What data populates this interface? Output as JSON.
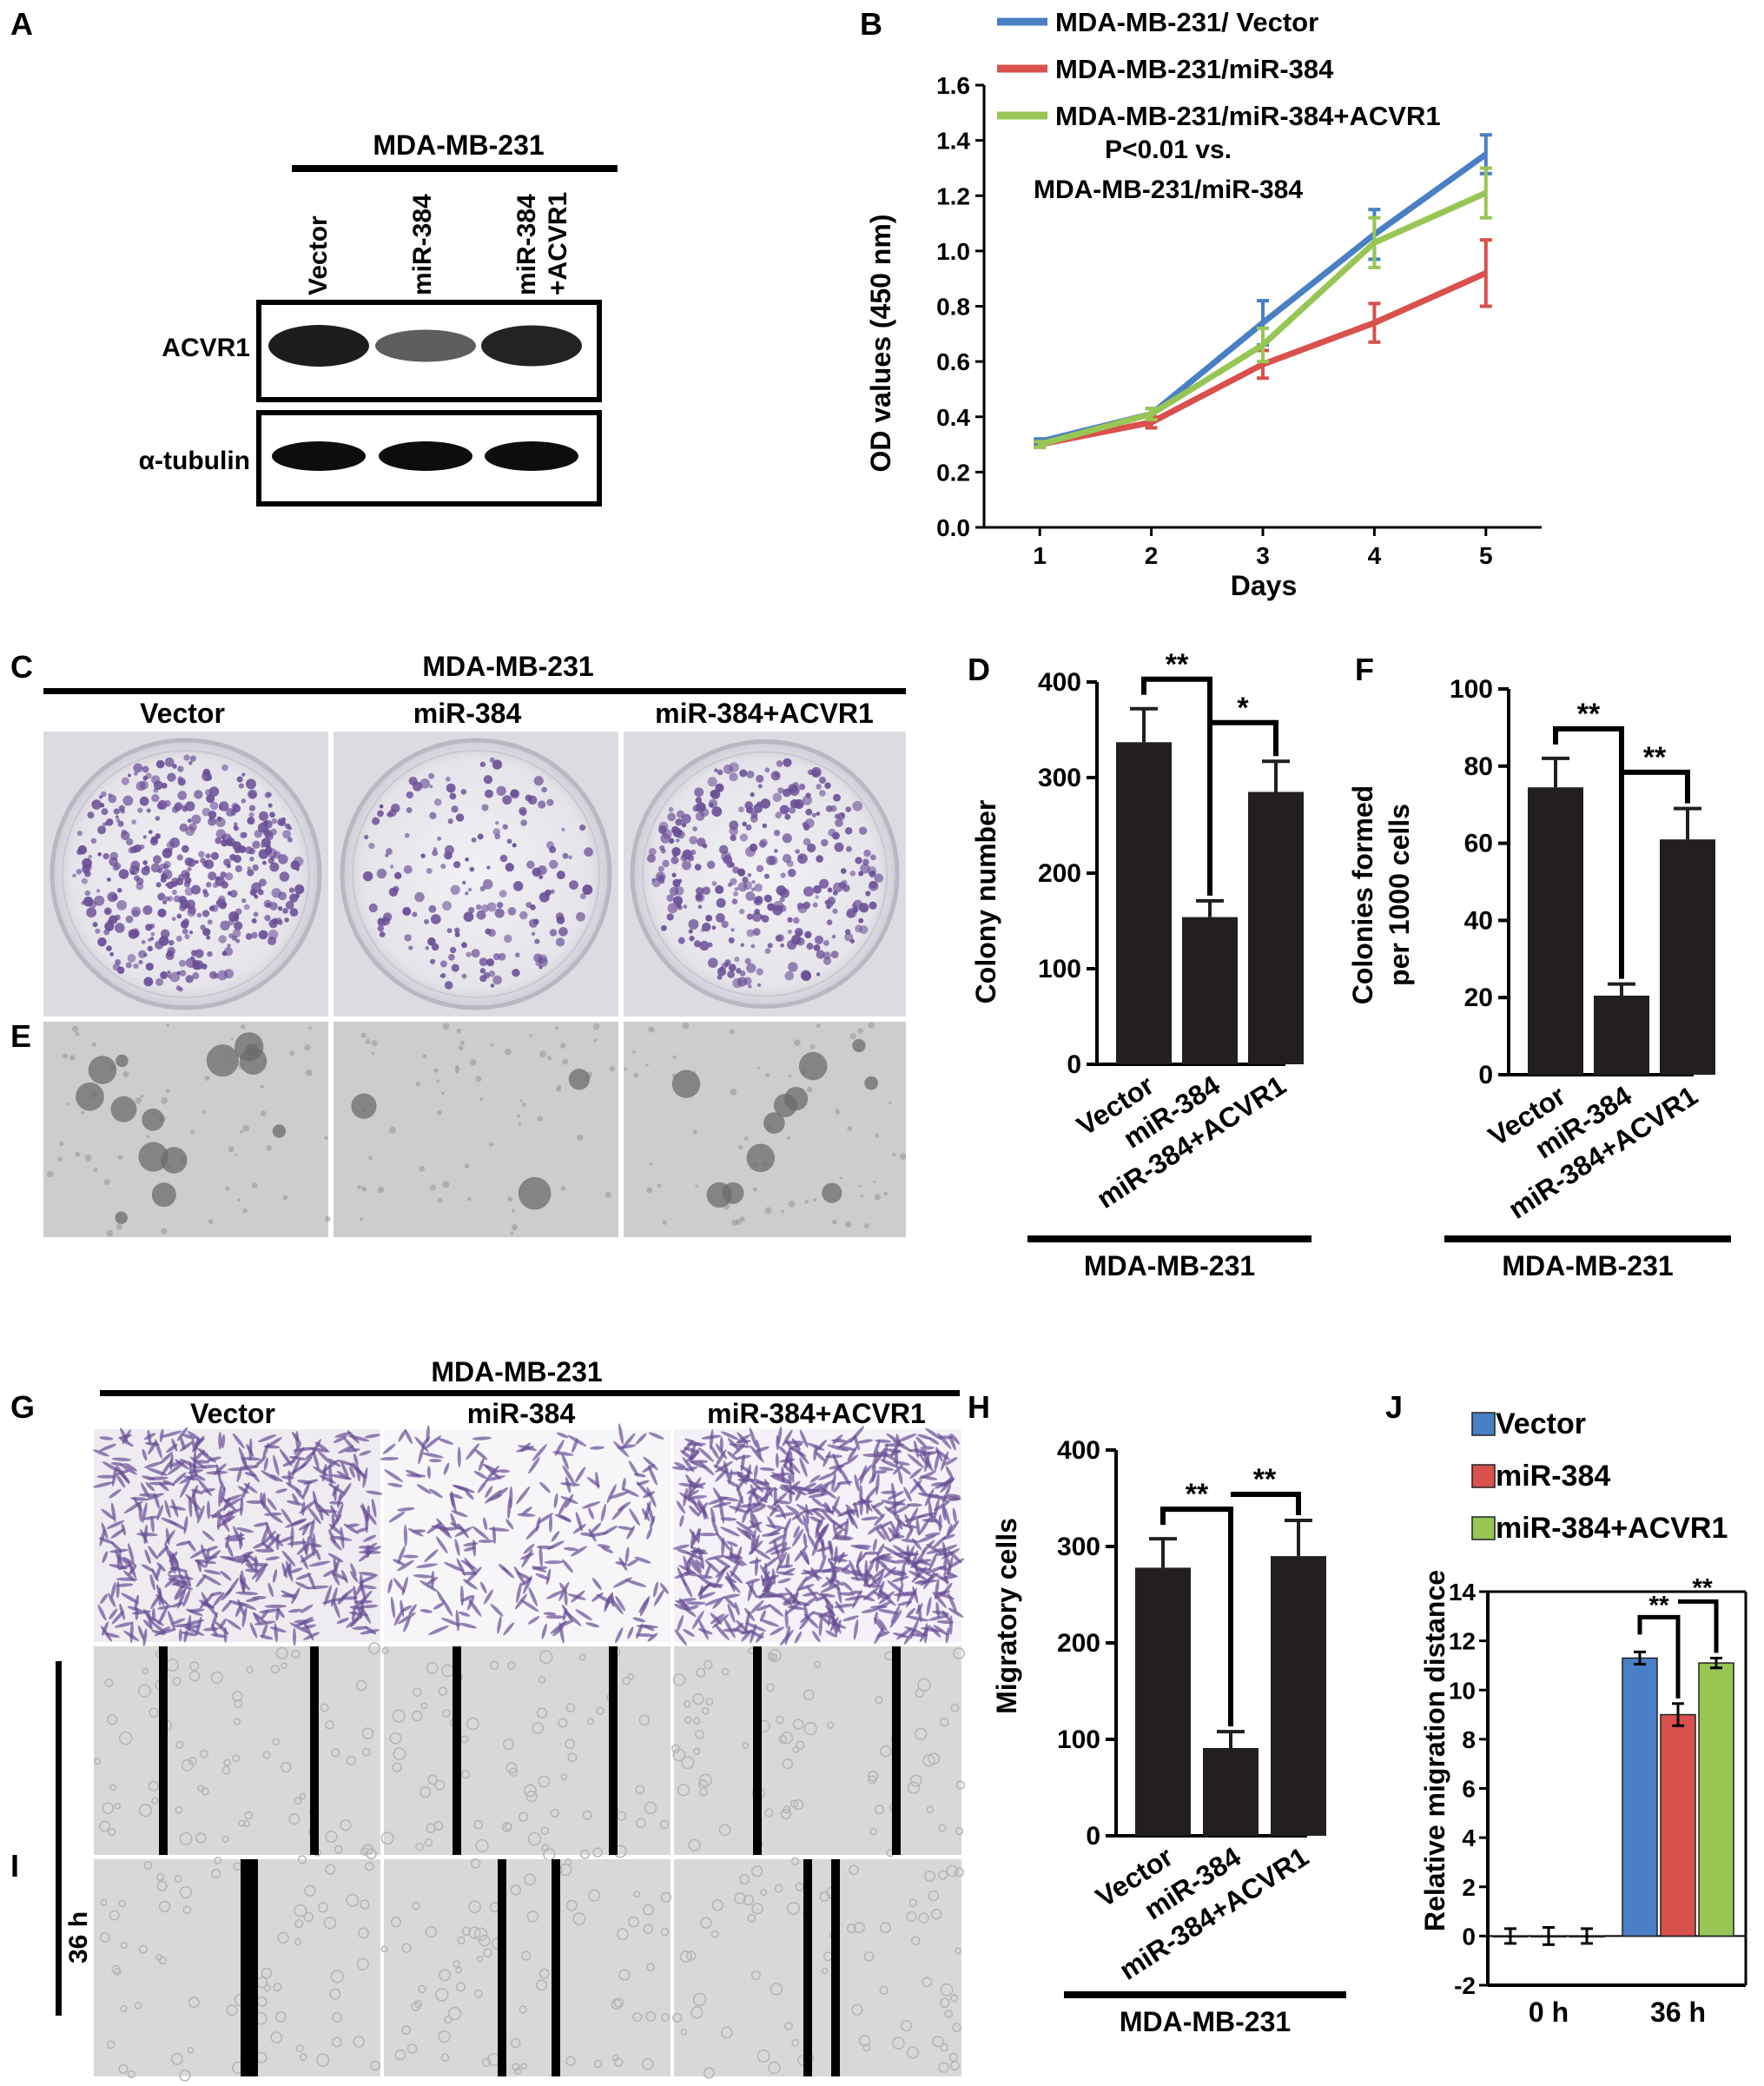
{
  "panel_letters": {
    "A": "A",
    "B": "B",
    "C": "C",
    "D": "D",
    "E": "E",
    "F": "F",
    "G": "G",
    "H": "H",
    "I": "I",
    "J": "J"
  },
  "cell_line": "MDA-MB-231",
  "blot": {
    "lanes": [
      "Vector",
      "miR-384",
      "miR-384",
      "+ACVR1"
    ],
    "rows": [
      "ACVR1",
      "α-tubulin"
    ],
    "band_intensity": {
      "ACVR1": [
        1.0,
        0.45,
        0.95
      ],
      "alpha_tubulin": [
        1.0,
        1.0,
        1.0
      ]
    }
  },
  "groups": [
    "Vector",
    "miR-384",
    "miR-384+ACVR1"
  ],
  "wound_times": [
    "0 h",
    "36 h"
  ],
  "image_colors": {
    "stain": "#6a4e96",
    "plate_bg": "#e6e5ea",
    "brightfield": "#cdcdcd"
  },
  "chart_data": [
    {
      "id": "B",
      "type": "line",
      "x": [
        1,
        2,
        3,
        4,
        5
      ],
      "series": [
        {
          "name": "MDA-MB-231/ Vector",
          "color": "#4a7fc6",
          "values": [
            0.31,
            0.41,
            0.74,
            1.06,
            1.35
          ],
          "err": [
            0.01,
            0.02,
            0.08,
            0.09,
            0.07
          ]
        },
        {
          "name": "MDA-MB-231/miR-384",
          "color": "#d9504c",
          "values": [
            0.3,
            0.38,
            0.59,
            0.74,
            0.92
          ],
          "err": [
            0.01,
            0.02,
            0.05,
            0.07,
            0.12
          ]
        },
        {
          "name": "MDA-MB-231/miR-384+ACVR1",
          "color": "#97c655",
          "values": [
            0.3,
            0.41,
            0.66,
            1.03,
            1.21
          ],
          "err": [
            0.01,
            0.02,
            0.06,
            0.09,
            0.09
          ]
        }
      ],
      "annotation": [
        "P<0.01 vs.",
        "MDA-MB-231/miR-384"
      ],
      "xlabel": "Days",
      "ylabel": "OD values (450 nm)",
      "ylim": [
        0,
        1.6
      ],
      "yticks": [
        "0.0",
        "0.2",
        "0.4",
        "0.6",
        "0.8",
        "1.0",
        "1.2",
        "1.4",
        "1.6"
      ],
      "legend": "top"
    },
    {
      "id": "D",
      "type": "bar",
      "categories": [
        "Vector",
        "miR-384",
        "miR-384+ACVR1"
      ],
      "values": [
        337,
        154,
        285
      ],
      "err": [
        35,
        17,
        32
      ],
      "ylabel": "Colony number",
      "ylim": [
        0,
        400
      ],
      "yticks": [
        "0",
        "100",
        "200",
        "300",
        "400"
      ],
      "significance": [
        "**",
        "*"
      ],
      "group_label": "MDA-MB-231"
    },
    {
      "id": "F",
      "type": "bar",
      "categories": [
        "Vector",
        "miR-384",
        "miR-384+ACVR1"
      ],
      "values": [
        74.5,
        20.5,
        61
      ],
      "err": [
        7.5,
        3,
        8
      ],
      "ylabel": [
        "Colonies formed",
        "per 1000 cells"
      ],
      "ylim": [
        0,
        100
      ],
      "yticks": [
        "0",
        "20",
        "40",
        "60",
        "80",
        "100"
      ],
      "significance": [
        "**",
        "**"
      ],
      "group_label": "MDA-MB-231"
    },
    {
      "id": "H",
      "type": "bar",
      "categories": [
        "Vector",
        "miR-384",
        "miR-384+ACVR1"
      ],
      "values": [
        278,
        91,
        290
      ],
      "err": [
        30,
        17,
        37
      ],
      "ylabel": "Migratory cells",
      "ylim": [
        0,
        400
      ],
      "yticks": [
        "0",
        "100",
        "200",
        "300",
        "400"
      ],
      "significance": [
        "**",
        "**"
      ],
      "group_label": "MDA-MB-231"
    },
    {
      "id": "J",
      "type": "bar",
      "categories": [
        "0 h",
        "36 h"
      ],
      "series": [
        {
          "name": "Vector",
          "color": "#4a7fc6",
          "values": [
            0,
            11.3
          ],
          "err": [
            0.3,
            0.25
          ]
        },
        {
          "name": "miR-384",
          "color": "#d9504c",
          "values": [
            0,
            9.0
          ],
          "err": [
            0.35,
            0.45
          ]
        },
        {
          "name": "miR-384+ACVR1",
          "color": "#97c655",
          "values": [
            0,
            11.1
          ],
          "err": [
            0.3,
            0.2
          ]
        }
      ],
      "ylabel": "Relative migration distance",
      "ylim": [
        -2,
        14
      ],
      "yticks": [
        "-2",
        "0",
        "2",
        "4",
        "6",
        "8",
        "10",
        "12",
        "14"
      ],
      "significance": [
        "**",
        "**"
      ],
      "legend": "top-left"
    }
  ]
}
